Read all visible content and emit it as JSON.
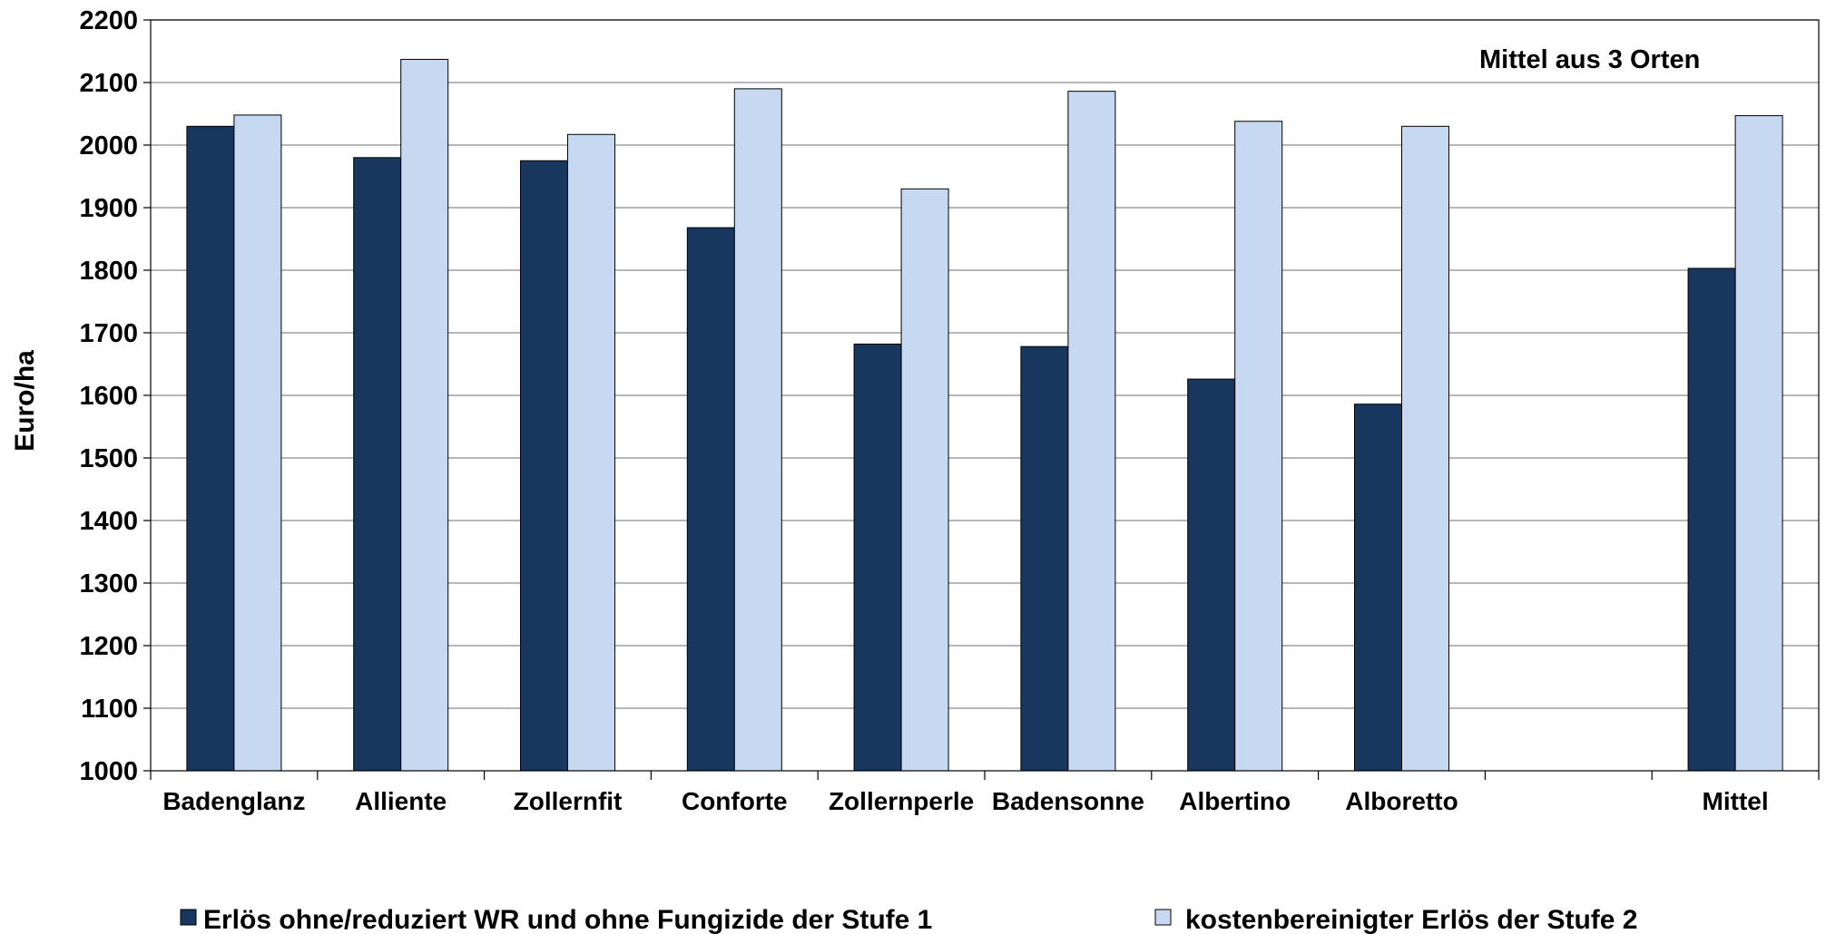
{
  "chart_data": {
    "type": "bar",
    "title": "",
    "annotation": "Mittel aus 3 Orten",
    "ylabel": "Euro/ha",
    "xlabel": "",
    "ylim": [
      1000,
      2200
    ],
    "ytick_step": 100,
    "yticks": [
      "1000",
      "1100",
      "1200",
      "1300",
      "1400",
      "1500",
      "1600",
      "1700",
      "1800",
      "1900",
      "2000",
      "2100",
      "2200"
    ],
    "grid": true,
    "legend_position": "bottom",
    "categories": [
      "Badenglanz",
      "Alliente",
      "Zollernfit",
      "Conforte",
      "Zollernperle",
      "Badensonne",
      "Albertino",
      "Alboretto",
      "",
      "Mittel"
    ],
    "series": [
      {
        "name": "Erlös ohne/reduziert WR und ohne Fungizide der Stufe 1",
        "color": "#17375e",
        "values": [
          2030,
          1980,
          1975,
          1868,
          1682,
          1678,
          1626,
          1586,
          null,
          1803
        ]
      },
      {
        "name": "kostenbereinigter Erlös der Stufe 2",
        "color": "#c6d9f1",
        "values": [
          2048,
          2137,
          2017,
          2090,
          1930,
          2086,
          2038,
          2030,
          null,
          2047
        ]
      }
    ]
  }
}
